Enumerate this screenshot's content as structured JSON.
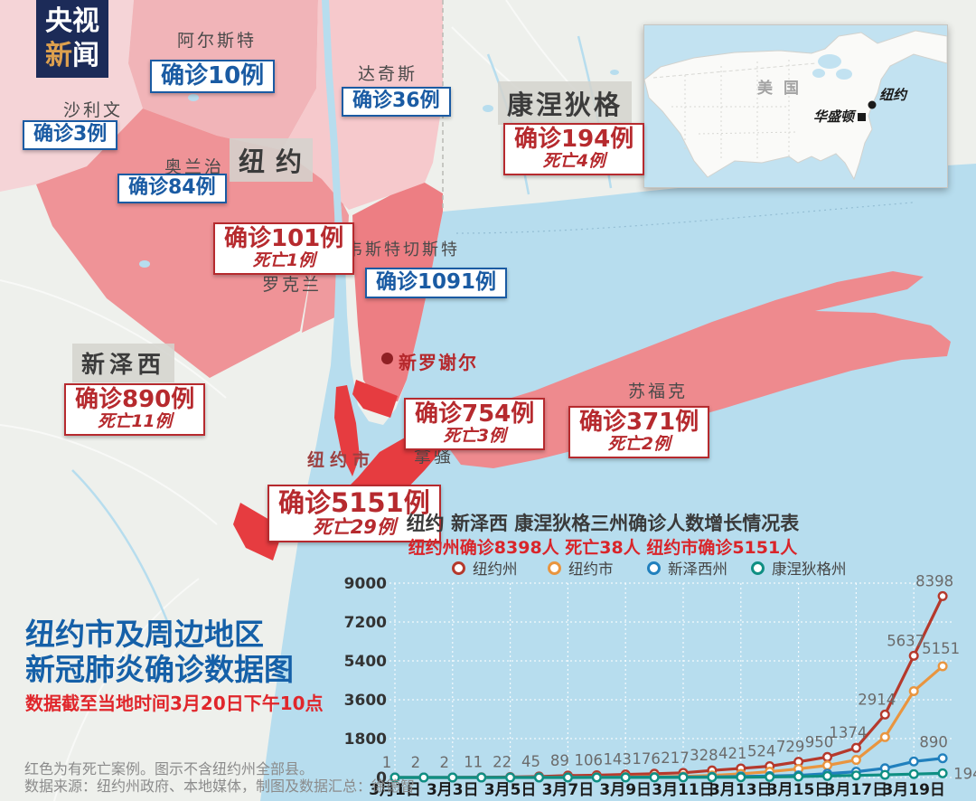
{
  "logo": {
    "l1c1": "央",
    "l1c2": "视",
    "l2c1": "新",
    "l2c2": "闻"
  },
  "inset": {
    "country": "美国",
    "city_ny": "纽约",
    "city_dc": "华盛顿"
  },
  "map": {
    "county_labels": {
      "ulster": "阿尔斯特",
      "dutchess": "达奇斯",
      "sullivan": "沙利文",
      "orange": "奥兰治",
      "rockland": "罗克兰",
      "westchester": "韦斯特切斯特",
      "nassau": "拿骚",
      "suffolk": "苏福克"
    },
    "state_labels": {
      "new_york": "纽约",
      "connecticut": "康涅狄格",
      "new_jersey": "新泽西"
    },
    "city_labels": {
      "nyc": "纽约市",
      "new_rochelle": "新罗谢尔"
    },
    "stats": {
      "ulster": {
        "cases": "确诊10例"
      },
      "dutchess": {
        "cases": "确诊36例"
      },
      "sullivan": {
        "cases": "确诊3例"
      },
      "orange": {
        "cases": "确诊84例"
      },
      "rockland": {
        "cases": "确诊101例",
        "deaths": "死亡1例"
      },
      "westchester": {
        "cases": "确诊1091例"
      },
      "connecticut": {
        "cases": "确诊194例",
        "deaths": "死亡4例"
      },
      "new_jersey": {
        "cases": "确诊890例",
        "deaths": "死亡11例"
      },
      "nyc": {
        "cases": "确诊5151例",
        "deaths": "死亡29例"
      },
      "nassau": {
        "cases": "确诊754例",
        "deaths": "死亡3例"
      },
      "suffolk": {
        "cases": "确诊371例",
        "deaths": "死亡2例"
      }
    }
  },
  "title_block": {
    "line1": "纽约市及周边地区",
    "line2": "新冠肺炎确诊数据图",
    "subtitle": "数据截至当地时间3月20日下午10点"
  },
  "footer": {
    "line1": "红色为有死亡案例。图示不含纽约州全部县。",
    "line2": "数据来源：纽约州政府、本地媒体，制图及数据汇总：徐德智"
  },
  "chart_data": {
    "type": "line",
    "title": "纽约 新泽西 康涅狄格三州确诊人数增长情况表",
    "subtitle": "纽约州确诊8398人 死亡38人 纽约市确诊5151人",
    "x_labels": [
      "3月1日",
      "3月3日",
      "3月5日",
      "3月7日",
      "3月9日",
      "3月11日",
      "3月13日",
      "3月15日",
      "3月17日",
      "3月19日"
    ],
    "days": 20,
    "ylim": [
      0,
      9000
    ],
    "yticks": [
      0,
      1800,
      3600,
      5400,
      7200,
      9000
    ],
    "grid": true,
    "legend_position": "top",
    "series": [
      {
        "name": "纽约州",
        "color": "#b5392c",
        "labels_shown": true,
        "values": [
          1,
          2,
          2,
          11,
          22,
          45,
          89,
          106,
          143,
          176,
          217,
          328,
          421,
          524,
          729,
          950,
          1374,
          2914,
          5637,
          8398
        ]
      },
      {
        "name": "纽约市",
        "color": "#e9953f",
        "end_label": "5151",
        "values_estimated": true,
        "values": [
          1,
          1,
          1,
          1,
          2,
          4,
          12,
          14,
          25,
          36,
          52,
          95,
          170,
          270,
          400,
          560,
          814,
          1871,
          4000,
          5151
        ]
      },
      {
        "name": "新泽西州",
        "color": "#2180bd",
        "end_label": "890",
        "values_estimated": true,
        "values": [
          0,
          0,
          0,
          1,
          2,
          2,
          4,
          6,
          11,
          15,
          23,
          29,
          50,
          69,
          98,
          178,
          267,
          427,
          742,
          890
        ]
      },
      {
        "name": "康涅狄格州",
        "color": "#0f8f83",
        "end_label": "194",
        "values_estimated": true,
        "values": [
          0,
          0,
          0,
          0,
          0,
          1,
          1,
          2,
          3,
          4,
          6,
          11,
          12,
          24,
          41,
          68,
          96,
          122,
          159,
          194
        ]
      }
    ]
  },
  "colors": {
    "water": "#b7ddee",
    "land": "#eef0ec",
    "nyc_region": "#e63c40",
    "long_island": "#ee8a8e",
    "westchester": "#ed7e83",
    "orange_county": "#ef9397",
    "ulster": "#f1b4b8",
    "pale_pink": "#f5d4d7",
    "case_box_blue": "#1a5ba3",
    "case_box_red": "#b62a2e",
    "logo_bg": "#1c2b58",
    "title_blue": "#1560a8",
    "subtitle_red": "#e0262b"
  }
}
